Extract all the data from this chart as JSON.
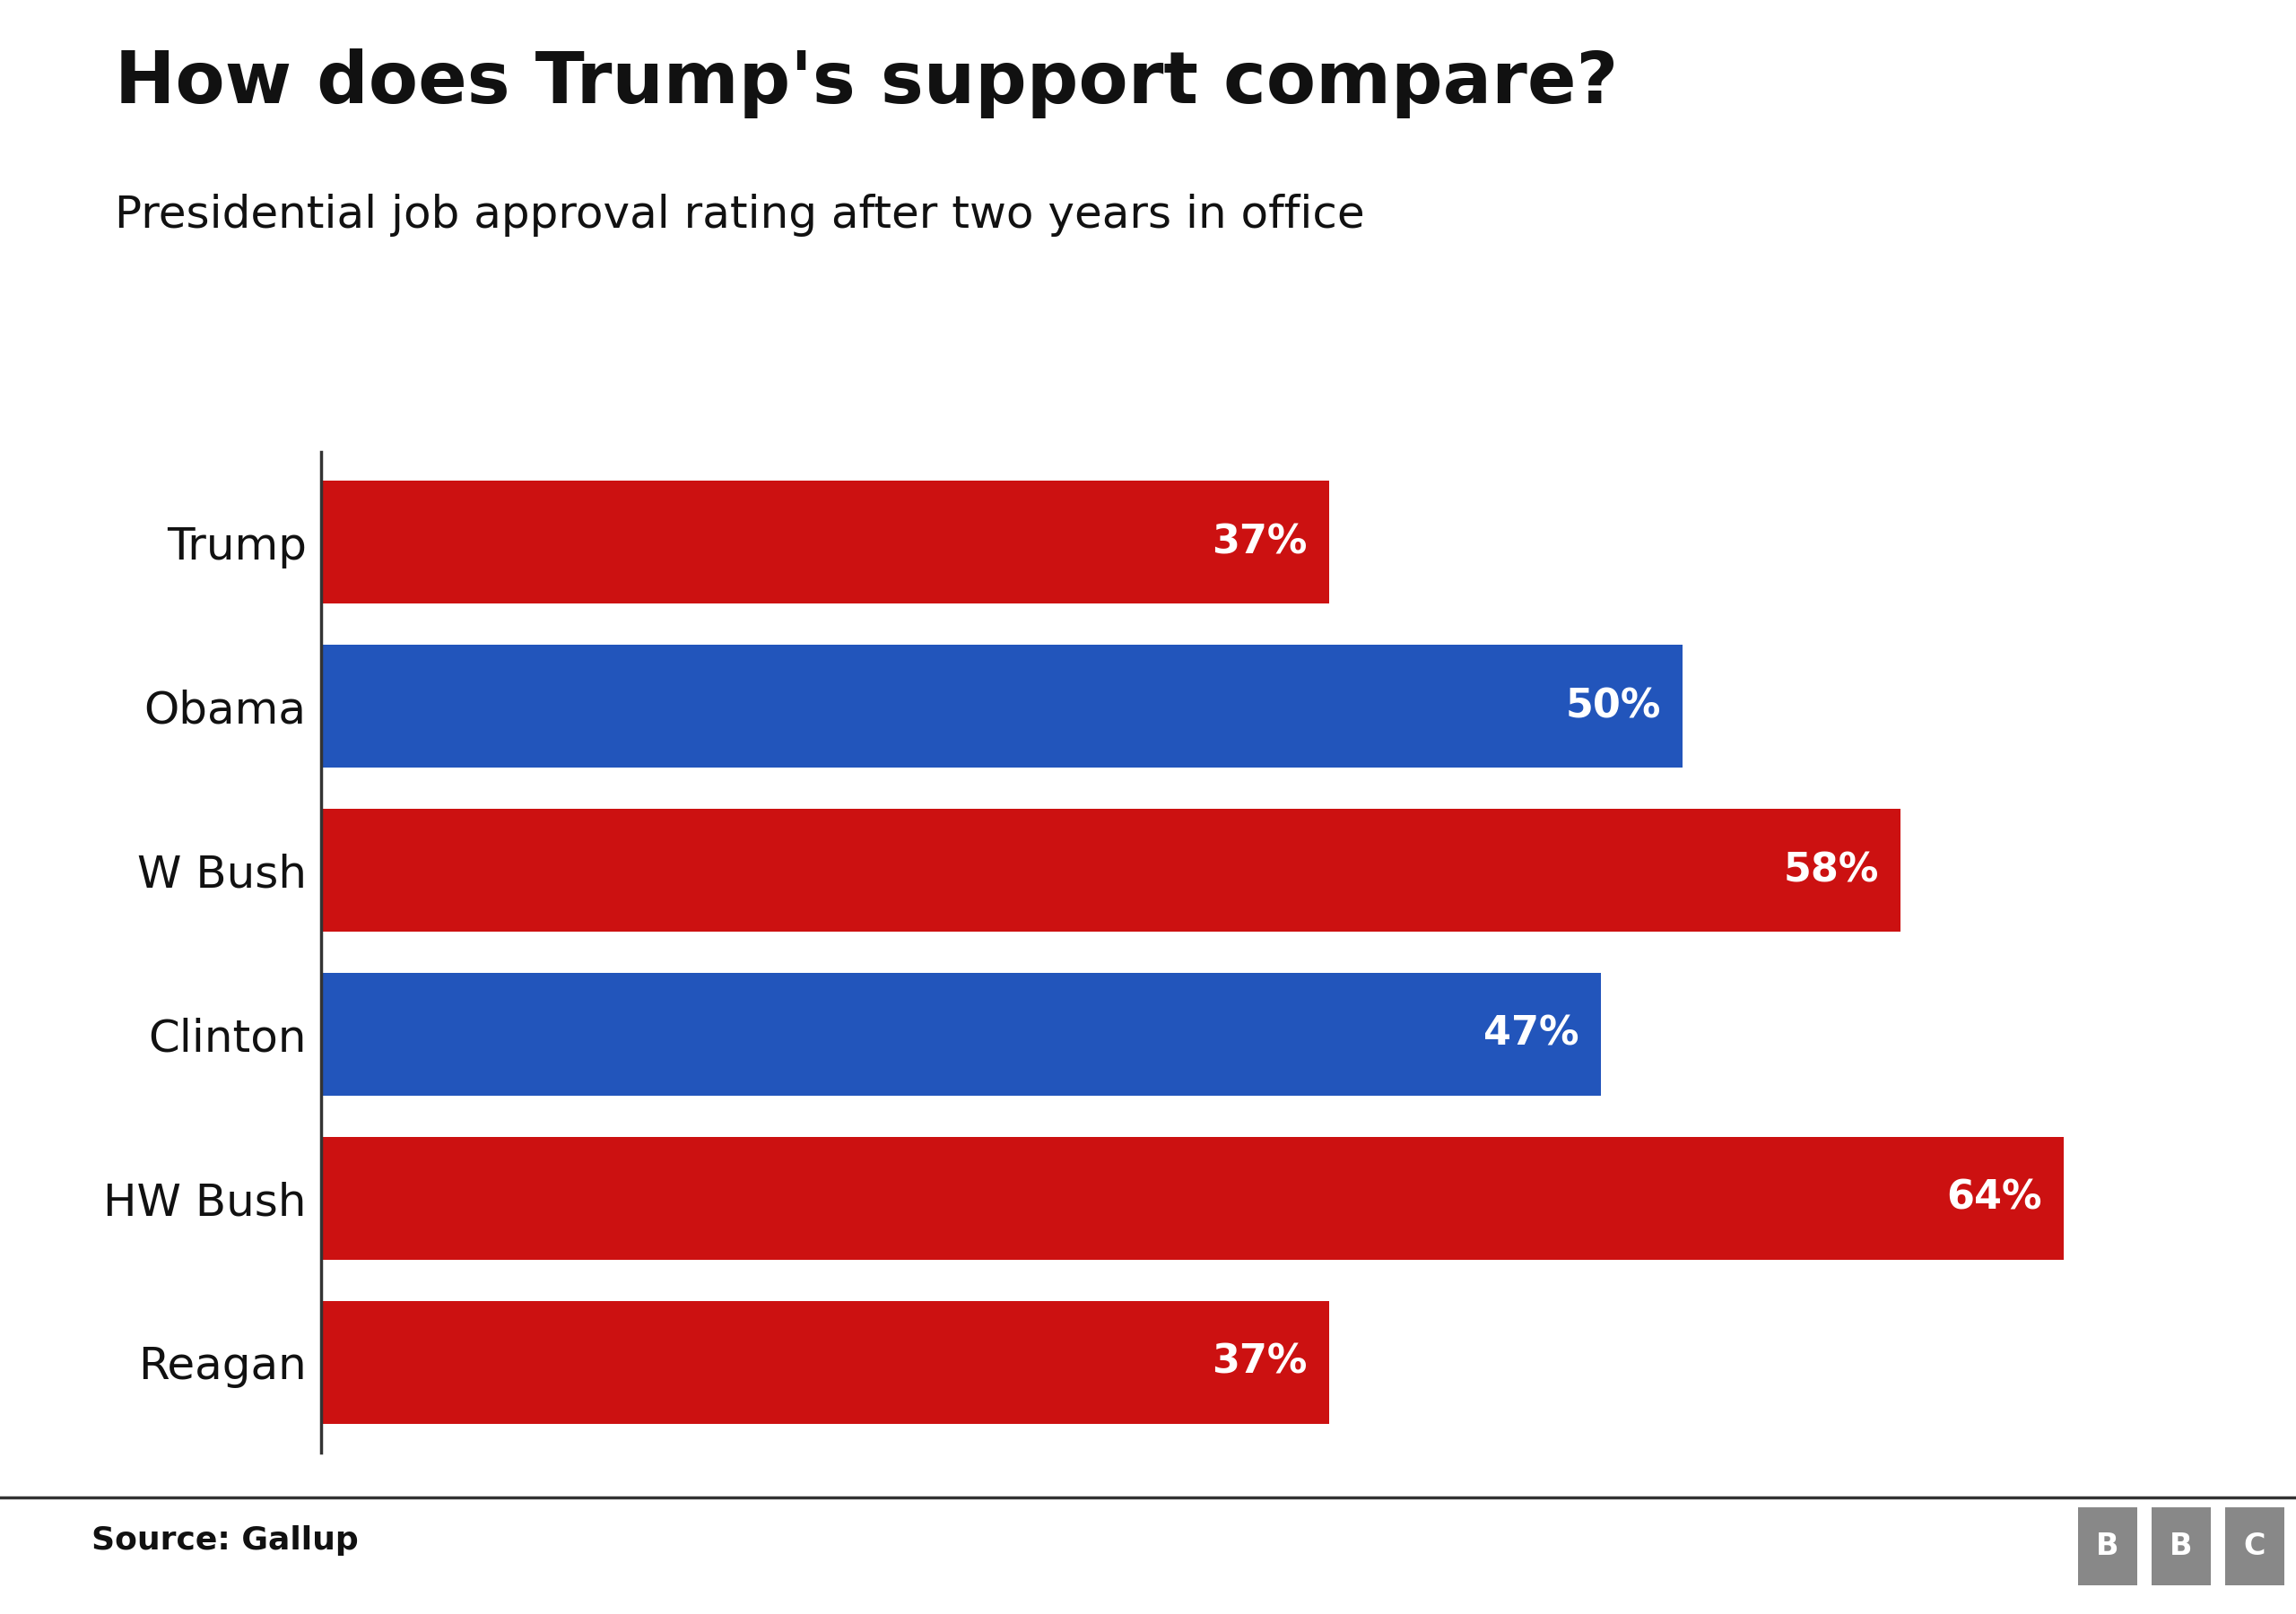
{
  "title": "How does Trump's support compare?",
  "subtitle": "Presidential job approval rating after two years in office",
  "source": "Source: Gallup",
  "categories": [
    "Trump",
    "Obama",
    "W Bush",
    "Clinton",
    "HW Bush",
    "Reagan"
  ],
  "values": [
    37,
    50,
    58,
    47,
    64,
    37
  ],
  "colors": [
    "#cc1111",
    "#2255bb",
    "#cc1111",
    "#2255bb",
    "#cc1111",
    "#cc1111"
  ],
  "xlim": [
    0,
    70
  ],
  "title_fontsize": 58,
  "subtitle_fontsize": 36,
  "label_fontsize": 36,
  "bar_label_fontsize": 32,
  "source_fontsize": 26,
  "background_color": "#ffffff",
  "bar_height": 0.75,
  "text_color_dark": "#111111",
  "text_color_white": "#ffffff",
  "bbc_box_color": "#888888"
}
